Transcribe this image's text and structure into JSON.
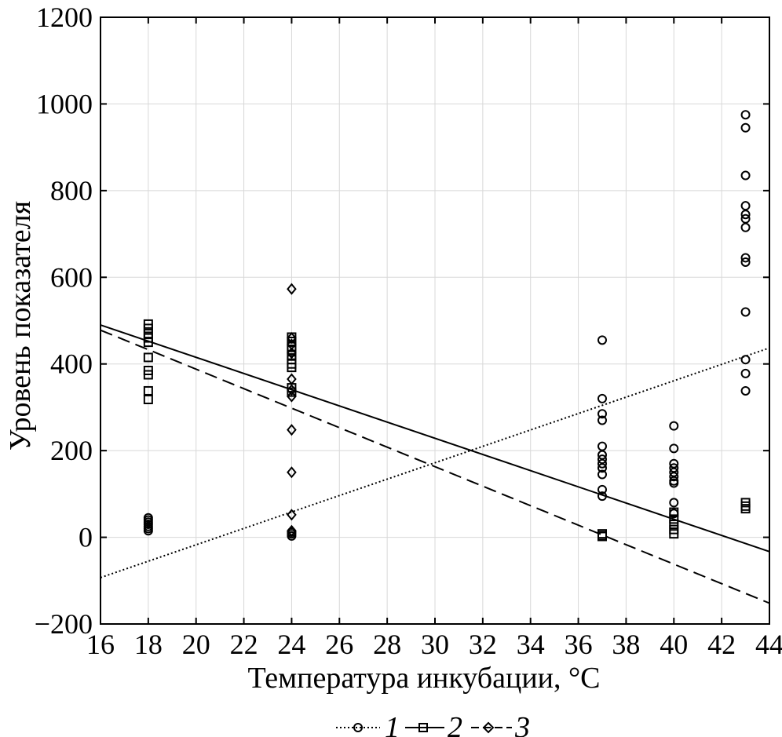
{
  "chart_data": {
    "type": "scatter",
    "title": "",
    "xlabel": "Температура инкубации, °C",
    "ylabel": "Уровень показателя",
    "xlim": [
      16,
      44
    ],
    "ylim": [
      -200,
      1200
    ],
    "x_ticks": [
      16,
      18,
      20,
      22,
      24,
      26,
      28,
      30,
      32,
      34,
      36,
      38,
      40,
      42,
      44
    ],
    "y_ticks": [
      -200,
      0,
      200,
      400,
      600,
      800,
      1000,
      1200
    ],
    "x_tick_labels": [
      "16",
      "18",
      "20",
      "22",
      "24",
      "26",
      "28",
      "30",
      "32",
      "34",
      "36",
      "38",
      "40",
      "42",
      "44"
    ],
    "y_tick_labels": [
      "−200",
      "0",
      "200",
      "400",
      "600",
      "800",
      "1000",
      "1200"
    ],
    "grid": true,
    "legend_position": "bottom-center",
    "series": [
      {
        "name": "1",
        "marker": "circle",
        "line_style": "dotted",
        "fit": {
          "x": [
            16,
            44
          ],
          "y": [
            -93,
            437
          ]
        },
        "points": [
          {
            "x": 18,
            "y": 15
          },
          {
            "x": 18,
            "y": 20
          },
          {
            "x": 18,
            "y": 25
          },
          {
            "x": 18,
            "y": 30
          },
          {
            "x": 18,
            "y": 35
          },
          {
            "x": 18,
            "y": 40
          },
          {
            "x": 18,
            "y": 45
          },
          {
            "x": 24,
            "y": 3
          },
          {
            "x": 24,
            "y": 8
          },
          {
            "x": 24,
            "y": 12
          },
          {
            "x": 37,
            "y": 455
          },
          {
            "x": 37,
            "y": 320
          },
          {
            "x": 37,
            "y": 285
          },
          {
            "x": 37,
            "y": 270
          },
          {
            "x": 37,
            "y": 210
          },
          {
            "x": 37,
            "y": 190
          },
          {
            "x": 37,
            "y": 180
          },
          {
            "x": 37,
            "y": 170
          },
          {
            "x": 37,
            "y": 160
          },
          {
            "x": 37,
            "y": 145
          },
          {
            "x": 37,
            "y": 110
          },
          {
            "x": 37,
            "y": 95
          },
          {
            "x": 40,
            "y": 257
          },
          {
            "x": 40,
            "y": 205
          },
          {
            "x": 40,
            "y": 170
          },
          {
            "x": 40,
            "y": 160
          },
          {
            "x": 40,
            "y": 150
          },
          {
            "x": 40,
            "y": 140
          },
          {
            "x": 40,
            "y": 130
          },
          {
            "x": 40,
            "y": 125
          },
          {
            "x": 40,
            "y": 80
          },
          {
            "x": 40,
            "y": 55
          },
          {
            "x": 43,
            "y": 975
          },
          {
            "x": 43,
            "y": 945
          },
          {
            "x": 43,
            "y": 835
          },
          {
            "x": 43,
            "y": 765
          },
          {
            "x": 43,
            "y": 745
          },
          {
            "x": 43,
            "y": 735
          },
          {
            "x": 43,
            "y": 715
          },
          {
            "x": 43,
            "y": 645
          },
          {
            "x": 43,
            "y": 635
          },
          {
            "x": 43,
            "y": 520
          },
          {
            "x": 43,
            "y": 410
          },
          {
            "x": 43,
            "y": 378
          },
          {
            "x": 43,
            "y": 338
          }
        ]
      },
      {
        "name": "2",
        "marker": "square",
        "line_style": "solid",
        "fit": {
          "x": [
            16,
            44
          ],
          "y": [
            490,
            -33
          ]
        },
        "points": [
          {
            "x": 18,
            "y": 492
          },
          {
            "x": 18,
            "y": 482
          },
          {
            "x": 18,
            "y": 470
          },
          {
            "x": 18,
            "y": 460
          },
          {
            "x": 18,
            "y": 450
          },
          {
            "x": 18,
            "y": 415
          },
          {
            "x": 18,
            "y": 385
          },
          {
            "x": 18,
            "y": 375
          },
          {
            "x": 18,
            "y": 338
          },
          {
            "x": 18,
            "y": 318
          },
          {
            "x": 24,
            "y": 462
          },
          {
            "x": 24,
            "y": 452
          },
          {
            "x": 24,
            "y": 440
          },
          {
            "x": 24,
            "y": 432
          },
          {
            "x": 24,
            "y": 420
          },
          {
            "x": 24,
            "y": 410
          },
          {
            "x": 24,
            "y": 400
          },
          {
            "x": 24,
            "y": 392
          },
          {
            "x": 24,
            "y": 345
          },
          {
            "x": 24,
            "y": 335
          },
          {
            "x": 37,
            "y": 8
          },
          {
            "x": 37,
            "y": 4
          },
          {
            "x": 37,
            "y": 2
          },
          {
            "x": 40,
            "y": 58
          },
          {
            "x": 40,
            "y": 42
          },
          {
            "x": 40,
            "y": 30
          },
          {
            "x": 40,
            "y": 18
          },
          {
            "x": 40,
            "y": 8
          },
          {
            "x": 43,
            "y": 80
          },
          {
            "x": 43,
            "y": 72
          },
          {
            "x": 43,
            "y": 66
          }
        ]
      },
      {
        "name": "3",
        "marker": "diamond",
        "line_style": "dashed",
        "fit": {
          "x": [
            16,
            44
          ],
          "y": [
            478,
            -152
          ]
        },
        "points": [
          {
            "x": 24,
            "y": 573
          },
          {
            "x": 24,
            "y": 460
          },
          {
            "x": 24,
            "y": 445
          },
          {
            "x": 24,
            "y": 425
          },
          {
            "x": 24,
            "y": 365
          },
          {
            "x": 24,
            "y": 340
          },
          {
            "x": 24,
            "y": 325
          },
          {
            "x": 24,
            "y": 248
          },
          {
            "x": 24,
            "y": 150
          },
          {
            "x": 24,
            "y": 52
          },
          {
            "x": 24,
            "y": 15
          }
        ]
      }
    ]
  }
}
